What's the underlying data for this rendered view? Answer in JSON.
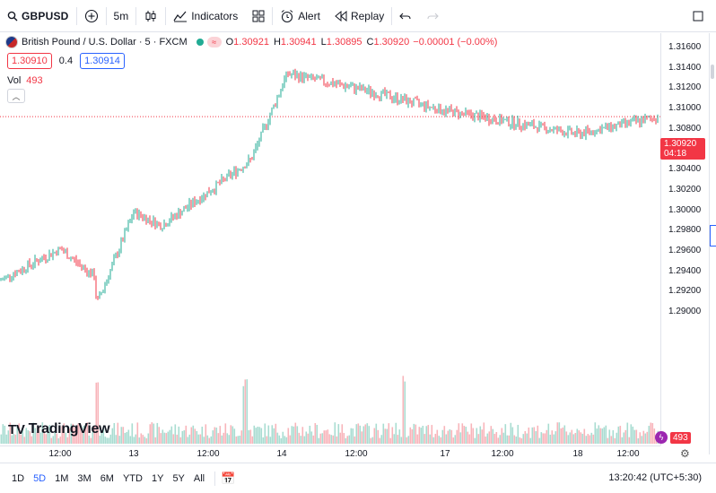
{
  "toolbar": {
    "symbol": "GBPUSD",
    "interval": "5m",
    "indicators_label": "Indicators",
    "alert_label": "Alert",
    "replay_label": "Replay"
  },
  "legend": {
    "title": "British Pound / U.S. Dollar · 5 · FXCM",
    "o_label": "O",
    "o_value": "1.30921",
    "h_label": "H",
    "h_value": "1.30941",
    "l_label": "L",
    "l_value": "1.30895",
    "c_label": "C",
    "c_value": "1.30920",
    "change": "−0.00001 (−0.00%)",
    "pill_symbol": "≈"
  },
  "quote": {
    "sell": "1.30910",
    "spread": "0.4",
    "buy": "1.30914"
  },
  "volume": {
    "label": "Vol",
    "value": "493"
  },
  "price_axis": {
    "ticks": [
      "1.31600",
      "1.31400",
      "1.31200",
      "1.31000",
      "1.30800",
      "1.30600",
      "1.30400",
      "1.30200",
      "1.30000",
      "1.29800",
      "1.29600",
      "1.29400",
      "1.29200",
      "1.29000"
    ],
    "last_price": "1.30920",
    "countdown": "04:18",
    "volume_tag": "493"
  },
  "time_axis": {
    "ticks": [
      "12:00",
      "13",
      "12:00",
      "14",
      "12:00",
      "17",
      "12:00",
      "18",
      "12:00"
    ]
  },
  "logo_text": "TradingView",
  "bottom": {
    "ranges": [
      "1D",
      "5D",
      "1M",
      "3M",
      "6M",
      "YTD",
      "1Y",
      "5Y",
      "All"
    ],
    "active_range": "5D",
    "clock": "13:20:42 (UTC+5:30)"
  },
  "colors": {
    "up": "#22ab94",
    "down": "#f23645",
    "accent": "#2962ff"
  },
  "chart_data": {
    "type": "candlestick",
    "symbol": "GBPUSD",
    "timeframe": "5",
    "ylim": [
      1.2885,
      1.3172
    ],
    "x": [
      "13 00:00",
      "13 06:00",
      "13 09:00",
      "13 12:00",
      "13 18:00",
      "14 00:00",
      "14 06:00",
      "14 12:00",
      "17 00:00",
      "17 06:00",
      "17 12:00",
      "18 00:00",
      "18 06:00",
      "18 12:00"
    ],
    "close": [
      1.2931,
      1.2962,
      1.2935,
      1.2908,
      1.2998,
      1.2985,
      1.3018,
      1.305,
      1.3134,
      1.312,
      1.3098,
      1.3088,
      1.3075,
      1.3092
    ],
    "last": 1.3092
  }
}
